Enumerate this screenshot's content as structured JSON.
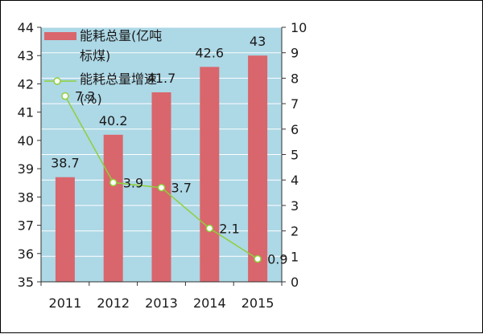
{
  "chart_data": {
    "type": "bar+line",
    "categories": [
      "2011",
      "2012",
      "2013",
      "2014",
      "2015"
    ],
    "series": [
      {
        "name": "能耗总量(亿吨标煤)",
        "type": "bar",
        "axis": "left",
        "values": [
          38.7,
          40.2,
          41.7,
          42.6,
          43
        ],
        "labels": [
          "38.7",
          "40.2",
          "41.7",
          "42.6",
          "43"
        ],
        "color": "#d9666c"
      },
      {
        "name": "能耗总量增速(%)",
        "type": "line",
        "axis": "right",
        "values": [
          7.3,
          3.9,
          3.7,
          2.1,
          0.9
        ],
        "labels": [
          "7.3",
          "3.9",
          "3.7",
          "2.1",
          "0.9"
        ],
        "color": "#8fcf3c"
      }
    ],
    "legend": {
      "bar_lines": [
        "能耗总量(亿吨",
        "标煤)"
      ],
      "line_lines": [
        "能耗总量增速",
        "(%)"
      ],
      "position": "top-left-inside"
    },
    "y_left": {
      "min": 35,
      "max": 44,
      "ticks": [
        "35",
        "36",
        "37",
        "38",
        "39",
        "40",
        "41",
        "42",
        "43",
        "44"
      ]
    },
    "y_right": {
      "min": 0,
      "max": 10,
      "ticks": [
        "0",
        "1",
        "2",
        "3",
        "4",
        "5",
        "6",
        "7",
        "8",
        "9",
        "10"
      ]
    },
    "plot_background": "#add8e6",
    "grid": true
  }
}
